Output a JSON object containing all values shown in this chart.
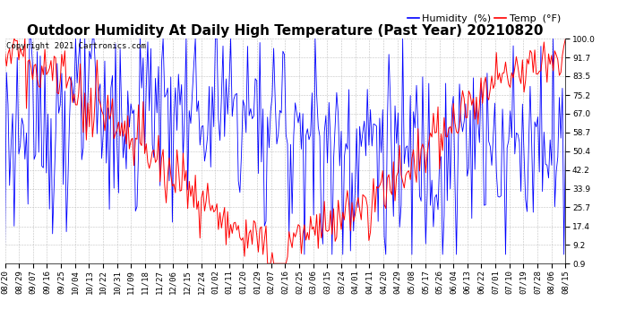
{
  "title": "Outdoor Humidity At Daily High Temperature (Past Year) 20210820",
  "copyright": "Copyright 2021 Cartronics.com",
  "legend_humidity": "Humidity  (%)",
  "legend_temp": "Temp  (°F)",
  "humidity_color": "#0000ff",
  "temp_color": "#ff0000",
  "background_color": "#ffffff",
  "grid_color": "#bbbbbb",
  "yticks": [
    0.9,
    9.2,
    17.4,
    25.7,
    33.9,
    42.2,
    50.4,
    58.7,
    67.0,
    75.2,
    83.5,
    91.7,
    100.0
  ],
  "ylim": [
    0.9,
    100.0
  ],
  "xtick_labels": [
    "08/20",
    "08/29",
    "09/07",
    "09/16",
    "09/25",
    "10/04",
    "10/13",
    "10/22",
    "10/31",
    "11/09",
    "11/18",
    "11/27",
    "12/06",
    "12/15",
    "12/24",
    "01/02",
    "01/11",
    "01/20",
    "01/29",
    "02/07",
    "02/16",
    "02/25",
    "03/06",
    "03/15",
    "03/24",
    "04/01",
    "04/11",
    "04/20",
    "04/29",
    "05/08",
    "05/17",
    "05/26",
    "06/04",
    "06/13",
    "06/22",
    "07/01",
    "07/10",
    "07/19",
    "07/28",
    "08/06",
    "08/15"
  ],
  "title_fontsize": 11,
  "tick_fontsize": 6.5,
  "copyright_fontsize": 6.5,
  "legend_fontsize": 8
}
